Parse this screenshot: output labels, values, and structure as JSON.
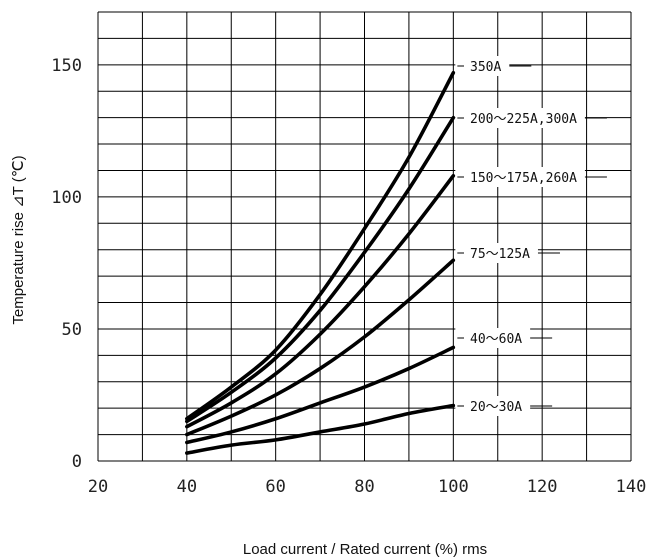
{
  "chart_data": {
    "type": "line",
    "title": "",
    "xlabel": "Load  current / Rated current (%)  rms",
    "ylabel": "Temperature rise ⊿T (℃)",
    "xlim": [
      20,
      140
    ],
    "ylim": [
      0,
      170
    ],
    "x_ticks": [
      20,
      40,
      60,
      80,
      100,
      120,
      140
    ],
    "y_ticks": [
      0,
      50,
      100,
      150
    ],
    "x_tick_labels": [
      "20",
      "40",
      "60",
      "80",
      "100",
      "120",
      "140"
    ],
    "y_tick_labels": [
      "0",
      "50",
      "100",
      "150"
    ],
    "grid": true,
    "legend": "inline-right",
    "x": [
      40,
      50,
      60,
      70,
      80,
      90,
      100
    ],
    "series": [
      {
        "name": "350A",
        "values": [
          16,
          28,
          42,
          63,
          88,
          115,
          147
        ]
      },
      {
        "name": "200～225A,300A",
        "values": [
          15,
          26,
          39,
          57,
          79,
          103,
          130
        ]
      },
      {
        "name": "150～175A,260A",
        "values": [
          13,
          22,
          33,
          48,
          66,
          86,
          108
        ]
      },
      {
        "name": "75～125A",
        "values": [
          10,
          17,
          25,
          35,
          47,
          61,
          76
        ]
      },
      {
        "name": "40～60A",
        "values": [
          7,
          11,
          16,
          22,
          28,
          35,
          43
        ]
      },
      {
        "name": "20～30A",
        "values": [
          3,
          6,
          8,
          11,
          14,
          18,
          21
        ]
      }
    ]
  }
}
